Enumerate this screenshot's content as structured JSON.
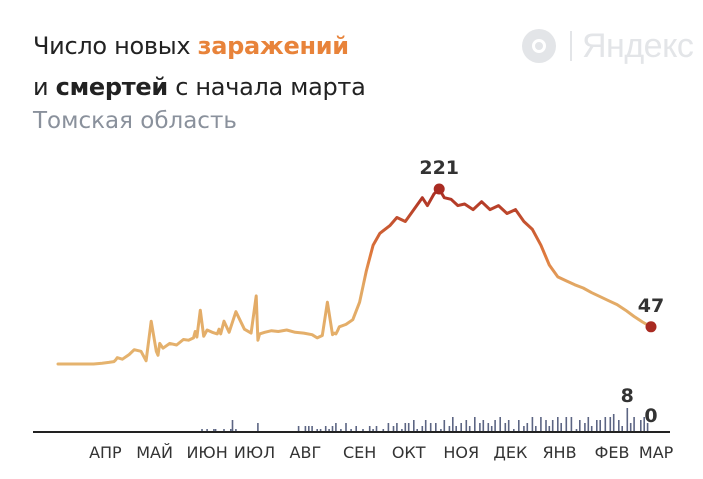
{
  "header": {
    "line1_prefix": "Число новых ",
    "line1_highlight": "заражений",
    "line2_prefix": "и ",
    "line2_highlight": "смертей",
    "line2_suffix": " с начала марта",
    "subtitle": "Томская область"
  },
  "logo": {
    "text": "Яндекс"
  },
  "colors": {
    "low": "#e5b36e",
    "mid": "#e07a3d",
    "high": "#a92b22",
    "deaths": "#5c6583",
    "axis": "#222222"
  },
  "chart_data": [
    {
      "type": "line",
      "series": [
        {
          "name": "заражений",
          "x": [
            0,
            7,
            14,
            21,
            26,
            30,
            33,
            34,
            35,
            38,
            42,
            45,
            49,
            52,
            55,
            58,
            59,
            60,
            62,
            66,
            70,
            74,
            77,
            80,
            81,
            82,
            84,
            86,
            88,
            91,
            94,
            95,
            96,
            98,
            101,
            105,
            110,
            114,
            117,
            118,
            119,
            122,
            126,
            130,
            135,
            140,
            145,
            150,
            153,
            156,
            159,
            162,
            163,
            164,
            165,
            166,
            170,
            174,
            178,
            182,
            186,
            190,
            196,
            200,
            205,
            210,
            215,
            218,
            222,
            225,
            228,
            232,
            236,
            240,
            245,
            250,
            255,
            260,
            265,
            270,
            275,
            280,
            285,
            290,
            295,
            300,
            305,
            310,
            315,
            320,
            325,
            330,
            335,
            340,
            345,
            350
          ],
          "values": [
            0,
            0,
            0,
            0,
            1,
            2,
            3,
            5,
            8,
            6,
            12,
            18,
            16,
            4,
            54,
            16,
            11,
            26,
            20,
            26,
            24,
            31,
            30,
            33,
            41,
            34,
            68,
            35,
            43,
            40,
            38,
            44,
            38,
            54,
            40,
            66,
            44,
            39,
            86,
            30,
            38,
            40,
            42,
            41,
            43,
            40,
            39,
            37,
            33,
            36,
            78,
            37,
            39,
            38,
            42,
            47,
            50,
            56,
            78,
            118,
            150,
            165,
            175,
            185,
            180,
            195,
            210,
            200,
            215,
            221,
            210,
            208,
            200,
            202,
            195,
            205,
            195,
            200,
            190,
            195,
            180,
            170,
            150,
            125,
            110,
            105,
            100,
            96,
            90,
            85,
            80,
            75,
            68,
            60,
            53,
            47
          ]
        }
      ],
      "annotations": [
        {
          "label": "221",
          "x": 225,
          "value": 221
        },
        {
          "label": "47",
          "x": 350,
          "value": 47
        }
      ],
      "ylim": [
        0,
        221
      ],
      "grid": false
    },
    {
      "type": "bar",
      "series": [
        {
          "name": "смертей",
          "x": [
            85,
            88,
            92,
            93,
            98,
            102,
            103,
            105,
            118,
            142,
            146,
            148,
            150,
            153,
            155,
            158,
            160,
            162,
            164,
            167,
            170,
            173,
            176,
            180,
            184,
            186,
            188,
            192,
            195,
            198,
            200,
            203,
            205,
            207,
            210,
            212,
            215,
            217,
            220,
            223,
            226,
            228,
            231,
            233,
            235,
            238,
            241,
            243,
            246,
            249,
            251,
            254,
            256,
            258,
            261,
            264,
            266,
            269,
            272,
            275,
            277,
            280,
            282,
            285,
            288,
            290,
            292,
            295,
            297,
            300,
            303,
            306,
            308,
            311,
            313,
            315,
            318,
            320,
            323,
            326,
            328,
            331,
            333,
            336,
            338,
            340,
            344,
            346,
            348,
            350
          ],
          "values": [
            1,
            1,
            1,
            1,
            1,
            1,
            4,
            1,
            3,
            2,
            2,
            2,
            2,
            1,
            1,
            2,
            1,
            2,
            3,
            1,
            3,
            1,
            2,
            1,
            2,
            1,
            2,
            1,
            3,
            2,
            3,
            1,
            3,
            3,
            4,
            1,
            2,
            4,
            3,
            3,
            1,
            4,
            2,
            5,
            2,
            3,
            4,
            2,
            5,
            3,
            4,
            3,
            2,
            4,
            5,
            3,
            4,
            1,
            4,
            2,
            3,
            5,
            2,
            5,
            4,
            2,
            4,
            5,
            3,
            5,
            5,
            1,
            4,
            3,
            5,
            2,
            4,
            4,
            5,
            5,
            6,
            4,
            2,
            8,
            3,
            5,
            4,
            5,
            3,
            0
          ]
        }
      ],
      "annotations": [
        {
          "label": "8",
          "x": 336,
          "value": 8
        },
        {
          "label": "0",
          "x": 350,
          "value": 0
        }
      ],
      "ylim": [
        0,
        8
      ]
    }
  ],
  "x_axis": {
    "ticks": [
      {
        "label": "АПР",
        "x": 28
      },
      {
        "label": "МАЙ",
        "x": 57
      },
      {
        "label": "ИЮН",
        "x": 88
      },
      {
        "label": "ИЮЛ",
        "x": 116
      },
      {
        "label": "АВГ",
        "x": 146
      },
      {
        "label": "СЕН",
        "x": 178
      },
      {
        "label": "ОКТ",
        "x": 207
      },
      {
        "label": "НОЯ",
        "x": 238
      },
      {
        "label": "ДЕК",
        "x": 267
      },
      {
        "label": "ЯНВ",
        "x": 296
      },
      {
        "label": "ФЕВ",
        "x": 327
      },
      {
        "label": "МАР",
        "x": 353
      }
    ]
  }
}
